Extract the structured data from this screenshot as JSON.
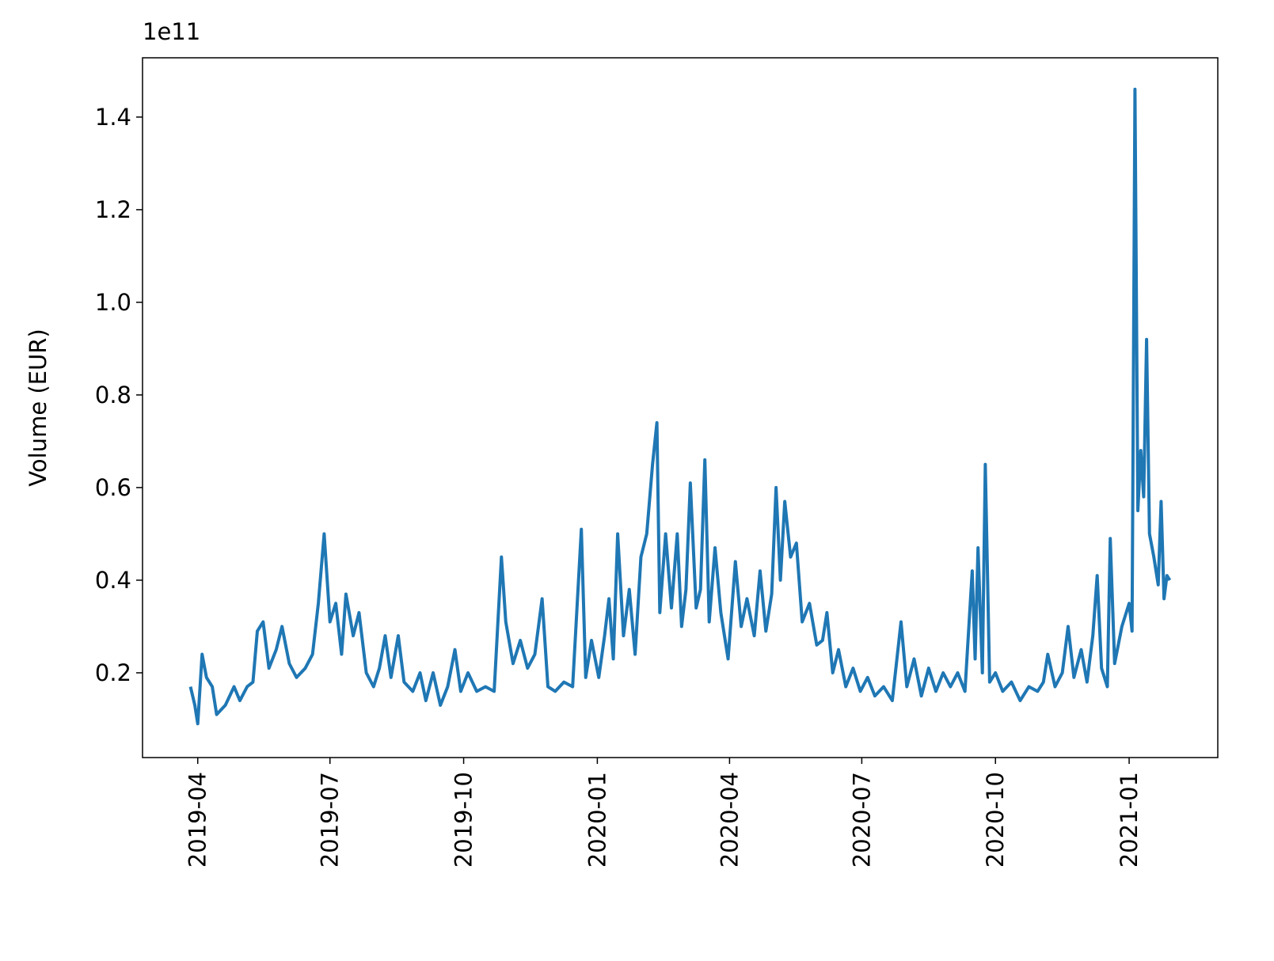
{
  "chart_data": {
    "type": "line",
    "ylabel": "Volume (EUR)",
    "offset_text": "1e11",
    "color": "#1f77b4",
    "x": [
      "2019-03-27",
      "2019-03-30",
      "2019-04-01",
      "2019-04-04",
      "2019-04-07",
      "2019-04-11",
      "2019-04-14",
      "2019-04-20",
      "2019-04-26",
      "2019-04-30",
      "2019-05-05",
      "2019-05-09",
      "2019-05-12",
      "2019-05-16",
      "2019-05-20",
      "2019-05-25",
      "2019-05-29",
      "2019-06-03",
      "2019-06-08",
      "2019-06-14",
      "2019-06-19",
      "2019-06-23",
      "2019-06-27",
      "2019-07-01",
      "2019-07-05",
      "2019-07-09",
      "2019-07-12",
      "2019-07-17",
      "2019-07-21",
      "2019-07-26",
      "2019-07-31",
      "2019-08-04",
      "2019-08-08",
      "2019-08-12",
      "2019-08-17",
      "2019-08-21",
      "2019-08-27",
      "2019-09-01",
      "2019-09-05",
      "2019-09-10",
      "2019-09-15",
      "2019-09-20",
      "2019-09-25",
      "2019-09-29",
      "2019-10-04",
      "2019-10-10",
      "2019-10-16",
      "2019-10-22",
      "2019-10-27",
      "2019-10-30",
      "2019-11-04",
      "2019-11-09",
      "2019-11-14",
      "2019-11-19",
      "2019-11-24",
      "2019-11-28",
      "2019-12-03",
      "2019-12-09",
      "2019-12-15",
      "2019-12-21",
      "2019-12-24",
      "2019-12-28",
      "2020-01-02",
      "2020-01-06",
      "2020-01-09",
      "2020-01-12",
      "2020-01-15",
      "2020-01-19",
      "2020-01-23",
      "2020-01-27",
      "2020-01-31",
      "2020-02-04",
      "2020-02-08",
      "2020-02-11",
      "2020-02-13",
      "2020-02-17",
      "2020-02-21",
      "2020-02-25",
      "2020-02-28",
      "2020-03-02",
      "2020-03-05",
      "2020-03-09",
      "2020-03-12",
      "2020-03-15",
      "2020-03-18",
      "2020-03-22",
      "2020-03-26",
      "2020-03-31",
      "2020-04-05",
      "2020-04-09",
      "2020-04-13",
      "2020-04-18",
      "2020-04-22",
      "2020-04-26",
      "2020-04-30",
      "2020-05-03",
      "2020-05-06",
      "2020-05-09",
      "2020-05-13",
      "2020-05-17",
      "2020-05-21",
      "2020-05-26",
      "2020-05-31",
      "2020-06-04",
      "2020-06-07",
      "2020-06-11",
      "2020-06-15",
      "2020-06-20",
      "2020-06-25",
      "2020-06-30",
      "2020-07-05",
      "2020-07-10",
      "2020-07-16",
      "2020-07-22",
      "2020-07-28",
      "2020-08-01",
      "2020-08-06",
      "2020-08-11",
      "2020-08-16",
      "2020-08-21",
      "2020-08-26",
      "2020-08-31",
      "2020-09-05",
      "2020-09-10",
      "2020-09-15",
      "2020-09-17",
      "2020-09-19",
      "2020-09-22",
      "2020-09-24",
      "2020-09-27",
      "2020-10-01",
      "2020-10-06",
      "2020-10-12",
      "2020-10-18",
      "2020-10-24",
      "2020-10-30",
      "2020-11-03",
      "2020-11-06",
      "2020-11-11",
      "2020-11-16",
      "2020-11-20",
      "2020-11-24",
      "2020-11-29",
      "2020-12-03",
      "2020-12-07",
      "2020-12-10",
      "2020-12-13",
      "2020-12-17",
      "2020-12-19",
      "2020-12-22",
      "2020-12-27",
      "2021-01-01",
      "2021-01-03",
      "2021-01-05",
      "2021-01-07",
      "2021-01-09",
      "2021-01-11",
      "2021-01-13",
      "2021-01-15",
      "2021-01-18",
      "2021-01-21",
      "2021-01-23",
      "2021-01-25",
      "2021-01-27",
      "2021-01-29"
    ],
    "values": [
      0.17,
      0.13,
      0.09,
      0.24,
      0.19,
      0.17,
      0.11,
      0.13,
      0.17,
      0.14,
      0.17,
      0.18,
      0.29,
      0.31,
      0.21,
      0.25,
      0.3,
      0.22,
      0.19,
      0.21,
      0.24,
      0.35,
      0.5,
      0.31,
      0.35,
      0.24,
      0.37,
      0.28,
      0.33,
      0.2,
      0.17,
      0.21,
      0.28,
      0.19,
      0.28,
      0.18,
      0.16,
      0.2,
      0.14,
      0.2,
      0.13,
      0.17,
      0.25,
      0.16,
      0.2,
      0.16,
      0.17,
      0.16,
      0.45,
      0.31,
      0.22,
      0.27,
      0.21,
      0.24,
      0.36,
      0.17,
      0.16,
      0.18,
      0.17,
      0.51,
      0.19,
      0.27,
      0.19,
      0.28,
      0.36,
      0.23,
      0.5,
      0.28,
      0.38,
      0.24,
      0.45,
      0.5,
      0.65,
      0.74,
      0.33,
      0.5,
      0.34,
      0.5,
      0.3,
      0.38,
      0.61,
      0.34,
      0.38,
      0.66,
      0.31,
      0.47,
      0.33,
      0.23,
      0.44,
      0.3,
      0.36,
      0.28,
      0.42,
      0.29,
      0.37,
      0.6,
      0.4,
      0.57,
      0.45,
      0.48,
      0.31,
      0.35,
      0.26,
      0.27,
      0.33,
      0.2,
      0.25,
      0.17,
      0.21,
      0.16,
      0.19,
      0.15,
      0.17,
      0.14,
      0.31,
      0.17,
      0.23,
      0.15,
      0.21,
      0.16,
      0.2,
      0.17,
      0.2,
      0.16,
      0.42,
      0.23,
      0.47,
      0.2,
      0.65,
      0.18,
      0.2,
      0.16,
      0.18,
      0.14,
      0.17,
      0.16,
      0.18,
      0.24,
      0.17,
      0.2,
      0.3,
      0.19,
      0.25,
      0.18,
      0.28,
      0.41,
      0.21,
      0.17,
      0.49,
      0.22,
      0.3,
      0.35,
      0.29,
      1.46,
      0.55,
      0.68,
      0.58,
      0.92,
      0.5,
      0.45,
      0.39,
      0.57,
      0.36,
      0.41,
      0.4
    ],
    "xlim": [
      "2019-02-22",
      "2021-03-03"
    ],
    "xticks": [
      "2019-04",
      "2019-07",
      "2019-10",
      "2020-01",
      "2020-04",
      "2020-07",
      "2020-10",
      "2021-01"
    ],
    "ylim": [
      0.017,
      1.528
    ],
    "yticks": [
      0.2,
      0.4,
      0.6,
      0.8,
      {
        "value": 1,
        "label": "1.0"
      },
      1.2,
      1.4
    ]
  }
}
